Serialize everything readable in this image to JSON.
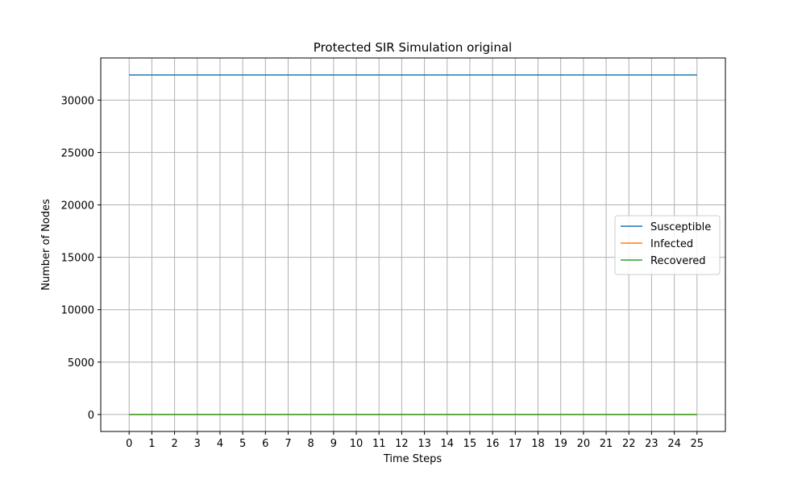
{
  "chart_data": {
    "type": "line",
    "title": "Protected SIR Simulation original",
    "xlabel": "Time Steps",
    "ylabel": "Number of Nodes",
    "x": [
      0,
      1,
      2,
      3,
      4,
      5,
      6,
      7,
      8,
      9,
      10,
      11,
      12,
      13,
      14,
      15,
      16,
      17,
      18,
      19,
      20,
      21,
      22,
      23,
      24,
      25
    ],
    "xticks": [
      "0",
      "1",
      "2",
      "3",
      "4",
      "5",
      "6",
      "7",
      "8",
      "9",
      "10",
      "11",
      "12",
      "13",
      "14",
      "15",
      "16",
      "17",
      "18",
      "19",
      "20",
      "21",
      "22",
      "23",
      "24",
      "25"
    ],
    "yticks": [
      "0",
      "5000",
      "10000",
      "15000",
      "20000",
      "25000",
      "30000"
    ],
    "ytick_values": [
      0,
      5000,
      10000,
      15000,
      20000,
      25000,
      30000
    ],
    "xlim": [
      -1.25,
      26.25
    ],
    "ylim": [
      -1620,
      34020
    ],
    "grid": true,
    "legend_position": "center-right",
    "series": [
      {
        "name": "Susceptible",
        "color": "#1f77b4",
        "values": [
          32400,
          32400,
          32400,
          32400,
          32400,
          32400,
          32400,
          32400,
          32400,
          32400,
          32400,
          32400,
          32400,
          32400,
          32400,
          32400,
          32400,
          32400,
          32400,
          32400,
          32400,
          32400,
          32400,
          32400,
          32400,
          32400
        ]
      },
      {
        "name": "Infected",
        "color": "#ff7f0e",
        "values": [
          0,
          0,
          0,
          0,
          0,
          0,
          0,
          0,
          0,
          0,
          0,
          0,
          0,
          0,
          0,
          0,
          0,
          0,
          0,
          0,
          0,
          0,
          0,
          0,
          0,
          0
        ]
      },
      {
        "name": "Recovered",
        "color": "#2ca02c",
        "values": [
          0,
          0,
          0,
          0,
          0,
          0,
          0,
          0,
          0,
          0,
          0,
          0,
          0,
          0,
          0,
          0,
          0,
          0,
          0,
          0,
          0,
          0,
          0,
          0,
          0,
          0
        ]
      }
    ]
  }
}
